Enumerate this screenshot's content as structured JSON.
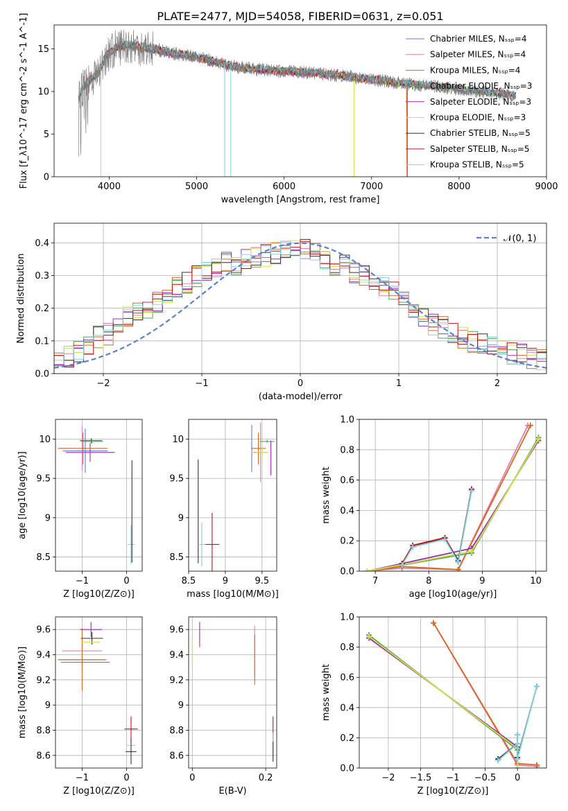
{
  "title": "PLATE=2477, MJD=54058, FIBERID=0631, z=0.051",
  "chart_data": [
    {
      "id": "spectrum",
      "type": "line",
      "xlabel": "wavelength [Angstrom, rest frame]",
      "ylabel": "Flux [f_λ10^-17 erg cm^-2 s^-1 A^-1]",
      "xlim": [
        3370,
        9000
      ],
      "ylim": [
        0,
        17.8
      ],
      "xticks": [
        4000,
        5000,
        6000,
        7000,
        8000,
        9000
      ],
      "yticks": [
        0,
        5,
        10,
        15
      ],
      "grid": false,
      "legend_position": "upper right",
      "observed": [
        [
          3650,
          9.2
        ],
        [
          3700,
          10.5
        ],
        [
          3800,
          11.5
        ],
        [
          3900,
          12.5
        ],
        [
          3950,
          14.0
        ],
        [
          4000,
          14.5
        ],
        [
          4100,
          15.2
        ],
        [
          4200,
          15.5
        ],
        [
          4300,
          15.3
        ],
        [
          4500,
          15.0
        ],
        [
          4700,
          14.5
        ],
        [
          4900,
          14.2
        ],
        [
          5100,
          13.8
        ],
        [
          5300,
          13.2
        ],
        [
          5500,
          12.8
        ],
        [
          5700,
          12.6
        ],
        [
          5900,
          12.4
        ],
        [
          6100,
          12.3
        ],
        [
          6300,
          12.2
        ],
        [
          6500,
          12.0
        ],
        [
          6700,
          11.8
        ],
        [
          6900,
          11.5
        ],
        [
          7100,
          11.3
        ],
        [
          7300,
          11.0
        ],
        [
          7500,
          10.8
        ],
        [
          7700,
          10.6
        ],
        [
          7900,
          10.4
        ],
        [
          8100,
          10.1
        ],
        [
          8300,
          9.9
        ],
        [
          8500,
          9.7
        ],
        [
          8650,
          9.5
        ]
      ],
      "series": [
        {
          "name": "Chabrier MILES, N_SSP=4",
          "color": "#5b7fd4"
        },
        {
          "name": "Salpeter MILES, N_SSP=4",
          "color": "#e37fae"
        },
        {
          "name": "Kroupa MILES, N_SSP=4",
          "color": "#d9661f"
        },
        {
          "name": "Chabrier ELODIE, N_SSP=3",
          "color": "#4ea85a"
        },
        {
          "name": "Salpeter ELODIE, N_SSP=3",
          "color": "#9b2ab8"
        },
        {
          "name": "Kroupa ELODIE, N_SSP=3",
          "color": "#d4e040"
        },
        {
          "name": "Chabrier STELIB, N_SSP=5",
          "color": "#333333"
        },
        {
          "name": "Salpeter STELIB, N_SSP=5",
          "color": "#cc1111"
        },
        {
          "name": "Kroupa STELIB, N_SSP=5",
          "color": "#7fd3e0"
        }
      ]
    },
    {
      "id": "residuals",
      "type": "line",
      "xlabel": "(data-model)/error",
      "ylabel": "Normed distribution",
      "xlim": [
        -2.5,
        2.5
      ],
      "ylim": [
        0,
        0.46
      ],
      "xticks": [
        -2,
        -1,
        0,
        1,
        2
      ],
      "yticks": [
        0.0,
        0.1,
        0.2,
        0.3,
        0.4
      ],
      "grid": true,
      "legend_position": "upper right",
      "reference_name": "𝒩(0, 1)",
      "reference_color": "#5b7fd4",
      "hist_centers": [
        -2.45,
        -2.35,
        -2.25,
        -2.15,
        -2.05,
        -1.95,
        -1.85,
        -1.75,
        -1.65,
        -1.55,
        -1.45,
        -1.35,
        -1.25,
        -1.15,
        -1.05,
        -0.95,
        -0.85,
        -0.75,
        -0.65,
        -0.55,
        -0.45,
        -0.35,
        -0.25,
        -0.15,
        -0.05,
        0.05,
        0.15,
        0.25,
        0.35,
        0.45,
        0.55,
        0.65,
        0.75,
        0.85,
        0.95,
        1.05,
        1.15,
        1.25,
        1.35,
        1.45,
        1.55,
        1.65,
        1.75,
        1.85,
        1.95,
        2.05,
        2.15,
        2.25,
        2.35,
        2.45
      ],
      "hist_mean": [
        0.04,
        0.05,
        0.07,
        0.09,
        0.11,
        0.12,
        0.15,
        0.17,
        0.19,
        0.2,
        0.22,
        0.25,
        0.27,
        0.28,
        0.3,
        0.31,
        0.33,
        0.34,
        0.33,
        0.35,
        0.36,
        0.36,
        0.37,
        0.37,
        0.38,
        0.38,
        0.37,
        0.35,
        0.33,
        0.34,
        0.31,
        0.3,
        0.28,
        0.27,
        0.25,
        0.22,
        0.19,
        0.17,
        0.15,
        0.14,
        0.12,
        0.11,
        0.1,
        0.09,
        0.08,
        0.08,
        0.06,
        0.06,
        0.05,
        0.04
      ]
    },
    {
      "id": "age-vs-Z",
      "type": "scatter",
      "xlabel": "Z [log10(Z/Z⊙)]",
      "ylabel": "age  [log10(age/yr)]",
      "xlim": [
        -1.6,
        0.35
      ],
      "ylim": [
        8.32,
        10.25
      ],
      "xticks": [
        -1,
        0
      ],
      "yticks": [
        8.5,
        9.0,
        9.5,
        10.0
      ],
      "grid": true,
      "points": [
        {
          "x": -1.0,
          "y": 9.88,
          "xerr": 0.55,
          "yerr": 0.28,
          "color": "#e37fae"
        },
        {
          "x": -0.93,
          "y": 9.85,
          "xerr": 0.5,
          "yerr": 0.28,
          "color": "#5b7fd4"
        },
        {
          "x": -0.82,
          "y": 9.83,
          "xerr": 0.55,
          "yerr": 0.12,
          "color": "#9b2ab8"
        },
        {
          "x": -0.98,
          "y": 9.88,
          "xerr": 0.55,
          "yerr": 0.2,
          "color": "#d9661f"
        },
        {
          "x": -0.8,
          "y": 9.98,
          "xerr": 0.25,
          "yerr": 0.03,
          "color": "#9b2ab8"
        },
        {
          "x": -0.78,
          "y": 9.97,
          "xerr": 0.25,
          "yerr": 0.03,
          "color": "#4ea85a"
        },
        {
          "x": 0.1,
          "y": 8.66,
          "xerr": 0.08,
          "yerr": 0.25,
          "color": "#7fd3e0"
        },
        {
          "x": 0.12,
          "y": 9.08,
          "xerr": 0.0,
          "yerr": 0.65,
          "color": "#333333"
        }
      ]
    },
    {
      "id": "age-vs-mass",
      "type": "scatter",
      "xlabel": "mass [log10(M/M⊙)]",
      "ylabel": "",
      "xlim": [
        8.5,
        9.7
      ],
      "ylim": [
        8.32,
        10.25
      ],
      "xticks": [
        8.5,
        9.0,
        9.5
      ],
      "yticks": [
        8.5,
        9.0,
        9.5,
        10.0
      ],
      "grid": true,
      "points": [
        {
          "x": 9.36,
          "y": 9.88,
          "xerr": 0.0,
          "yerr": 0.3,
          "color": "#5b7fd4"
        },
        {
          "x": 9.48,
          "y": 9.83,
          "xerr": 0.1,
          "yerr": 0.38,
          "color": "#e37fae"
        },
        {
          "x": 9.45,
          "y": 9.88,
          "xerr": 0.1,
          "yerr": 0.2,
          "color": "#d9661f"
        },
        {
          "x": 9.57,
          "y": 9.97,
          "xerr": 0.1,
          "yerr": 0.02,
          "color": "#4ea85a"
        },
        {
          "x": 9.62,
          "y": 9.76,
          "xerr": 0.0,
          "yerr": 0.22,
          "color": "#9b2ab8"
        },
        {
          "x": 9.5,
          "y": 9.83,
          "xerr": 0.08,
          "yerr": 0.12,
          "color": "#d4e040"
        },
        {
          "x": 8.63,
          "y": 9.08,
          "xerr": 0.0,
          "yerr": 0.66,
          "color": "#333333"
        },
        {
          "x": 8.82,
          "y": 8.66,
          "xerr": 0.1,
          "yerr": 0.4,
          "color": "#cc1111"
        },
        {
          "x": 8.68,
          "y": 8.66,
          "xerr": 0.05,
          "yerr": 0.28,
          "color": "#7fd3e0"
        }
      ]
    },
    {
      "id": "mass-weight-vs-age",
      "type": "line",
      "xlabel": "age  [log10(age/yr)]",
      "ylabel": "mass weight",
      "xlim": [
        6.7,
        10.2
      ],
      "ylim": [
        0,
        1.0
      ],
      "xticks": [
        7,
        8,
        9,
        10
      ],
      "yticks": [
        0.0,
        0.2,
        0.4,
        0.6,
        0.8,
        1.0
      ],
      "grid": true,
      "series": [
        {
          "color": "#e37fae",
          "points": [
            [
              6.85,
              0.0
            ],
            [
              7.5,
              0.02
            ],
            [
              8.55,
              0.01
            ],
            [
              9.85,
              0.96
            ]
          ]
        },
        {
          "color": "#d9661f",
          "points": [
            [
              6.85,
              0.0
            ],
            [
              7.5,
              0.03
            ],
            [
              8.55,
              0.01
            ],
            [
              9.9,
              0.96
            ]
          ]
        },
        {
          "color": "#9b2ab8",
          "points": [
            [
              6.85,
              0.0
            ],
            [
              8.8,
              0.15
            ],
            [
              10.05,
              0.86
            ]
          ]
        },
        {
          "color": "#4ea85a",
          "points": [
            [
              6.85,
              0.0
            ],
            [
              8.8,
              0.12
            ],
            [
              10.05,
              0.88
            ]
          ]
        },
        {
          "color": "#d4e040",
          "points": [
            [
              6.85,
              0.0
            ],
            [
              8.8,
              0.13
            ],
            [
              10.05,
              0.87
            ]
          ]
        },
        {
          "color": "#333333",
          "points": [
            [
              7.5,
              0.05
            ],
            [
              7.7,
              0.16
            ],
            [
              8.3,
              0.22
            ],
            [
              8.55,
              0.07
            ],
            [
              8.8,
              0.54
            ]
          ]
        },
        {
          "color": "#cc1111",
          "points": [
            [
              7.5,
              0.05
            ],
            [
              7.7,
              0.17
            ],
            [
              8.3,
              0.22
            ],
            [
              8.55,
              0.06
            ],
            [
              8.8,
              0.54
            ]
          ]
        },
        {
          "color": "#7fd3e0",
          "points": [
            [
              7.5,
              0.04
            ],
            [
              7.7,
              0.16
            ],
            [
              8.3,
              0.21
            ],
            [
              8.55,
              0.06
            ],
            [
              8.8,
              0.53
            ]
          ]
        }
      ]
    },
    {
      "id": "mass-vs-Z",
      "type": "scatter",
      "xlabel": "Z [log10(Z/Z⊙)]",
      "ylabel": "mass [log10(M/M⊙)]",
      "xlim": [
        -1.6,
        0.35
      ],
      "ylim": [
        8.5,
        9.7
      ],
      "xticks": [
        -1,
        0
      ],
      "yticks": [
        8.6,
        8.8,
        9.0,
        9.2,
        9.4,
        9.6
      ],
      "grid": true,
      "points": [
        {
          "x": -1.0,
          "y": 9.43,
          "xerr": 0.45,
          "yerr": 0.15,
          "color": "#e37fae"
        },
        {
          "x": -1.0,
          "y": 9.36,
          "xerr": 0.5,
          "yerr": 0.05,
          "color": "#4ea85a"
        },
        {
          "x": -1.0,
          "y": 9.36,
          "xerr": 0.55,
          "yerr": 0.25,
          "color": "#d9661f"
        },
        {
          "x": -0.93,
          "y": 9.34,
          "xerr": 0.55,
          "yerr": 0.0,
          "color": "#5b7fd4"
        },
        {
          "x": -0.8,
          "y": 9.6,
          "xerr": 0.25,
          "yerr": 0.06,
          "color": "#9b2ab8"
        },
        {
          "x": -0.78,
          "y": 9.53,
          "xerr": 0.25,
          "yerr": 0.05,
          "color": "#333333"
        },
        {
          "x": -0.8,
          "y": 9.5,
          "xerr": 0.2,
          "yerr": 0.0,
          "color": "#d4e040"
        },
        {
          "x": 0.1,
          "y": 8.81,
          "xerr": 0.15,
          "yerr": 0.1,
          "color": "#cc1111"
        },
        {
          "x": 0.1,
          "y": 8.68,
          "xerr": 0.1,
          "yerr": 0.0,
          "color": "#7fd3e0"
        },
        {
          "x": 0.1,
          "y": 8.63,
          "xerr": 0.12,
          "yerr": 0.1,
          "color": "#333333"
        }
      ]
    },
    {
      "id": "mass-vs-EBV",
      "type": "scatter",
      "xlabel": "E(B-V)",
      "ylabel": "",
      "xlim": [
        -0.01,
        0.23
      ],
      "ylim": [
        8.5,
        9.7
      ],
      "xticks": [
        0.0,
        0.2
      ],
      "yticks": [
        8.6,
        8.8,
        9.0,
        9.2,
        9.4,
        9.6
      ],
      "grid": true,
      "points": [
        {
          "x": 0.0,
          "y": 9.43,
          "xerr": 0.0,
          "yerr": 0.1,
          "color": "#d4e040"
        },
        {
          "x": 0.02,
          "y": 9.56,
          "xerr": 0.0,
          "yerr": 0.1,
          "color": "#9b2ab8"
        },
        {
          "x": 0.17,
          "y": 9.43,
          "xerr": 0.0,
          "yerr": 0.2,
          "color": "#e37fae"
        },
        {
          "x": 0.17,
          "y": 9.36,
          "xerr": 0.0,
          "yerr": 0.2,
          "color": "#d9661f"
        },
        {
          "x": 0.22,
          "y": 8.81,
          "xerr": 0.0,
          "yerr": 0.1,
          "color": "#cc1111"
        },
        {
          "x": 0.22,
          "y": 8.68,
          "xerr": 0.0,
          "yerr": 0.1,
          "color": "#7fd3e0"
        },
        {
          "x": 0.22,
          "y": 8.63,
          "xerr": 0.0,
          "yerr": 0.08,
          "color": "#333333"
        }
      ]
    },
    {
      "id": "mass-weight-vs-Z",
      "type": "line",
      "xlabel": "Z [log10(Z/Z⊙)]",
      "ylabel": "mass weight",
      "xlim": [
        -2.45,
        0.45
      ],
      "ylim": [
        0,
        1.0
      ],
      "xticks": [
        -2.0,
        -1.5,
        -1.0,
        -0.5,
        0.0
      ],
      "yticks": [
        0.0,
        0.2,
        0.4,
        0.6,
        0.8,
        1.0
      ],
      "grid": true,
      "series": [
        {
          "color": "#e37fae",
          "points": [
            [
              -1.3,
              0.96
            ],
            [
              0.0,
              0.02
            ],
            [
              0.3,
              0.01
            ]
          ]
        },
        {
          "color": "#d9661f",
          "points": [
            [
              -1.3,
              0.96
            ],
            [
              0.0,
              0.03
            ],
            [
              0.3,
              0.02
            ]
          ]
        },
        {
          "color": "#9b2ab8",
          "points": [
            [
              -2.3,
              0.86
            ],
            [
              0.0,
              0.14
            ],
            [
              0.0,
              0.0
            ]
          ]
        },
        {
          "color": "#4ea85a",
          "points": [
            [
              -2.3,
              0.88
            ],
            [
              0.0,
              0.12
            ],
            [
              0.0,
              0.0
            ]
          ]
        },
        {
          "color": "#d4e040",
          "points": [
            [
              -2.3,
              0.87
            ],
            [
              0.0,
              0.13
            ],
            [
              0.0,
              0.0
            ]
          ]
        },
        {
          "color": "#333333",
          "points": [
            [
              -0.3,
              0.06
            ],
            [
              0.0,
              0.16
            ],
            [
              0.0,
              0.22
            ],
            [
              0.0,
              0.07
            ],
            [
              0.3,
              0.54
            ]
          ]
        },
        {
          "color": "#7fd3e0",
          "points": [
            [
              -0.3,
              0.05
            ],
            [
              0.0,
              0.16
            ],
            [
              0.0,
              0.22
            ],
            [
              0.0,
              0.06
            ],
            [
              0.3,
              0.54
            ]
          ]
        }
      ]
    }
  ]
}
